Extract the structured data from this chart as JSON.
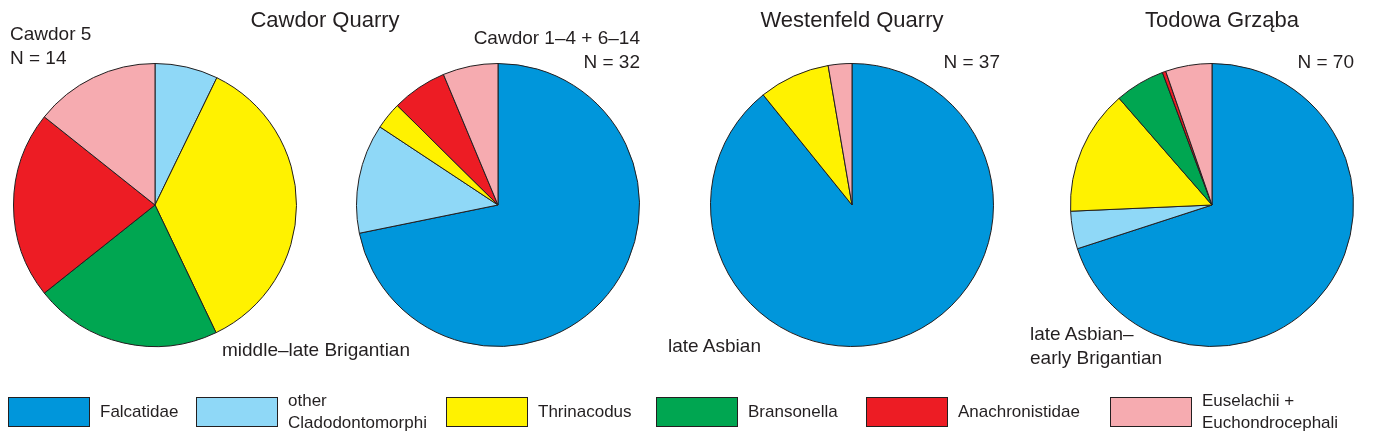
{
  "chart_data": [
    {
      "type": "pie",
      "title": "Cawdor Quarry",
      "subtitle": "Cawdor 5",
      "annotations": [
        "N = 14"
      ],
      "categories": [
        null,
        null,
        null,
        null,
        null,
        null
      ],
      "values": [
        0,
        7.2,
        35.7,
        21.4,
        21.4,
        14.3
      ],
      "colors": [
        "#0096db",
        "#8fd8f7",
        "#fff200",
        "#00a651",
        "#ed1c24",
        "#f6abb0"
      ]
    },
    {
      "type": "pie",
      "subtitle": "Cawdor 1–4 + 6–14",
      "annotations": [
        "N = 32",
        "middle–late Brigantian"
      ],
      "categories": [
        null,
        null,
        null,
        null,
        null,
        null
      ],
      "values": [
        71.8,
        12.5,
        3.1,
        0,
        6.3,
        6.3
      ],
      "colors": [
        "#0096db",
        "#8fd8f7",
        "#fff200",
        "#00a651",
        "#ed1c24",
        "#f6abb0"
      ]
    },
    {
      "type": "pie",
      "title": "Westenfeld Quarry",
      "annotations": [
        "N = 37",
        "late Asbian"
      ],
      "categories": [
        null,
        null,
        null,
        null,
        null,
        null
      ],
      "values": [
        89.2,
        0,
        8.1,
        0,
        0,
        2.7
      ],
      "colors": [
        "#0096db",
        "#8fd8f7",
        "#fff200",
        "#00a651",
        "#ed1c24",
        "#f6abb0"
      ]
    },
    {
      "type": "pie",
      "title": "Todowa Grząba",
      "annotations": [
        "N = 70",
        "late Asbian–\nearly Brigantian"
      ],
      "legend": "bottom",
      "categories": [
        "Falcatidae",
        "other\nCladodontomorphi",
        "Thrinacodus",
        "Bransonella",
        "Anachronistidae",
        "Euselachii +\nEuchondrocephali"
      ],
      "values": [
        70.0,
        4.3,
        14.3,
        5.7,
        0.4,
        5.3
      ],
      "colors": [
        "#0096db",
        "#8fd8f7",
        "#fff200",
        "#00a651",
        "#ed1c24",
        "#f6abb0"
      ]
    }
  ]
}
